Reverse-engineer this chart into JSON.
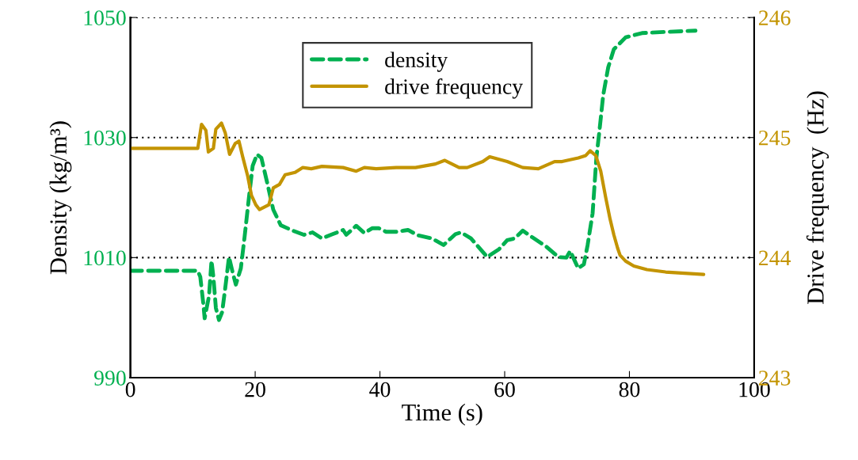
{
  "chart_data": {
    "type": "line",
    "xlabel": "Time (s)",
    "ylabel": "Density (kg/m³)",
    "y2label": "Drive frequency  (Hz)",
    "xlim": [
      0,
      100
    ],
    "xticks": [
      0,
      20,
      40,
      60,
      80,
      100
    ],
    "ylim": [
      990,
      1050
    ],
    "yticks": [
      990,
      1010,
      1030,
      1050
    ],
    "y2lim": [
      243,
      246
    ],
    "y2ticks": [
      243,
      244,
      245,
      246
    ],
    "grid": "y",
    "legend": "top",
    "series": [
      {
        "name": "density",
        "color": "#00b050",
        "line_style": "dashed",
        "axis": "y",
        "x": [
          0,
          10.8,
          11.2,
          11.7,
          11.9,
          12.6,
          13.0,
          13.3,
          13.7,
          14.2,
          14.7,
          15.2,
          15.8,
          16.4,
          16.9,
          17.7,
          18.3,
          19.0,
          19.6,
          20.3,
          21.0,
          21.9,
          22.9,
          24.1,
          26.0,
          27.8,
          29.2,
          30.7,
          32.4,
          34.1,
          34.6,
          36.2,
          37.5,
          38.8,
          39.8,
          41.0,
          42.6,
          44.5,
          46.1,
          48.3,
          50.2,
          52.1,
          53.0,
          54.6,
          57.2,
          59.1,
          60.4,
          61.6,
          62.9,
          64.4,
          66.7,
          68.6,
          69.9,
          70.5,
          71.8,
          72.7,
          73.3,
          74.1,
          74.7,
          75.2,
          75.8,
          76.6,
          77.5,
          79.4,
          82.0,
          85.8,
          90.6
        ],
        "values": [
          1007.8,
          1007.8,
          1006.8,
          1002.2,
          999.9,
          1003.6,
          1009.5,
          1006.8,
          1001.6,
          999.6,
          1000.9,
          1004.9,
          1010.1,
          1007.5,
          1005.5,
          1008.2,
          1013.4,
          1020.0,
          1025.3,
          1027.2,
          1026.6,
          1022.6,
          1018.0,
          1015.4,
          1014.5,
          1013.8,
          1014.2,
          1013.2,
          1013.9,
          1014.6,
          1013.8,
          1015.3,
          1014.1,
          1014.9,
          1014.9,
          1014.3,
          1014.3,
          1014.6,
          1013.7,
          1013.2,
          1012.1,
          1013.9,
          1014.2,
          1013.2,
          1010.1,
          1011.4,
          1012.9,
          1013.2,
          1014.5,
          1013.4,
          1011.8,
          1010.1,
          1010.0,
          1011.1,
          1008.2,
          1008.9,
          1012.1,
          1017.4,
          1026.6,
          1031.2,
          1037.1,
          1041.7,
          1044.7,
          1046.7,
          1047.4,
          1047.6,
          1047.8
        ]
      },
      {
        "name": "drive frequency",
        "color": "#c39400",
        "line_style": "solid",
        "axis": "y2",
        "x": [
          0,
          10.8,
          11.4,
          12.1,
          12.5,
          13.3,
          13.7,
          14.6,
          15.2,
          15.9,
          16.8,
          17.4,
          18.0,
          18.8,
          19.4,
          20.1,
          20.7,
          22.2,
          22.9,
          23.9,
          24.8,
          26.4,
          27.6,
          29.0,
          30.7,
          34.1,
          36.2,
          37.5,
          39.4,
          42.6,
          45.7,
          48.9,
          50.4,
          52.7,
          54.0,
          56.5,
          57.6,
          60.4,
          62.9,
          65.4,
          68.0,
          69.2,
          71.8,
          73.0,
          73.7,
          74.6,
          75.4,
          76.2,
          76.9,
          77.5,
          78.1,
          78.5,
          79.4,
          80.7,
          82.8,
          85.8,
          91.9
        ],
        "values": [
          244.91,
          244.91,
          245.11,
          245.06,
          244.88,
          244.91,
          245.07,
          245.12,
          245.04,
          244.86,
          244.95,
          244.97,
          244.84,
          244.68,
          244.52,
          244.44,
          244.4,
          244.44,
          244.58,
          244.61,
          244.69,
          244.71,
          244.75,
          244.74,
          244.76,
          244.75,
          244.72,
          244.75,
          244.74,
          244.75,
          244.75,
          244.78,
          244.81,
          244.75,
          244.75,
          244.8,
          244.84,
          244.8,
          244.75,
          244.74,
          244.8,
          244.8,
          244.83,
          244.85,
          244.89,
          244.85,
          244.72,
          244.5,
          244.32,
          244.19,
          244.08,
          244.02,
          243.97,
          243.93,
          243.9,
          243.88,
          243.86
        ]
      }
    ]
  }
}
